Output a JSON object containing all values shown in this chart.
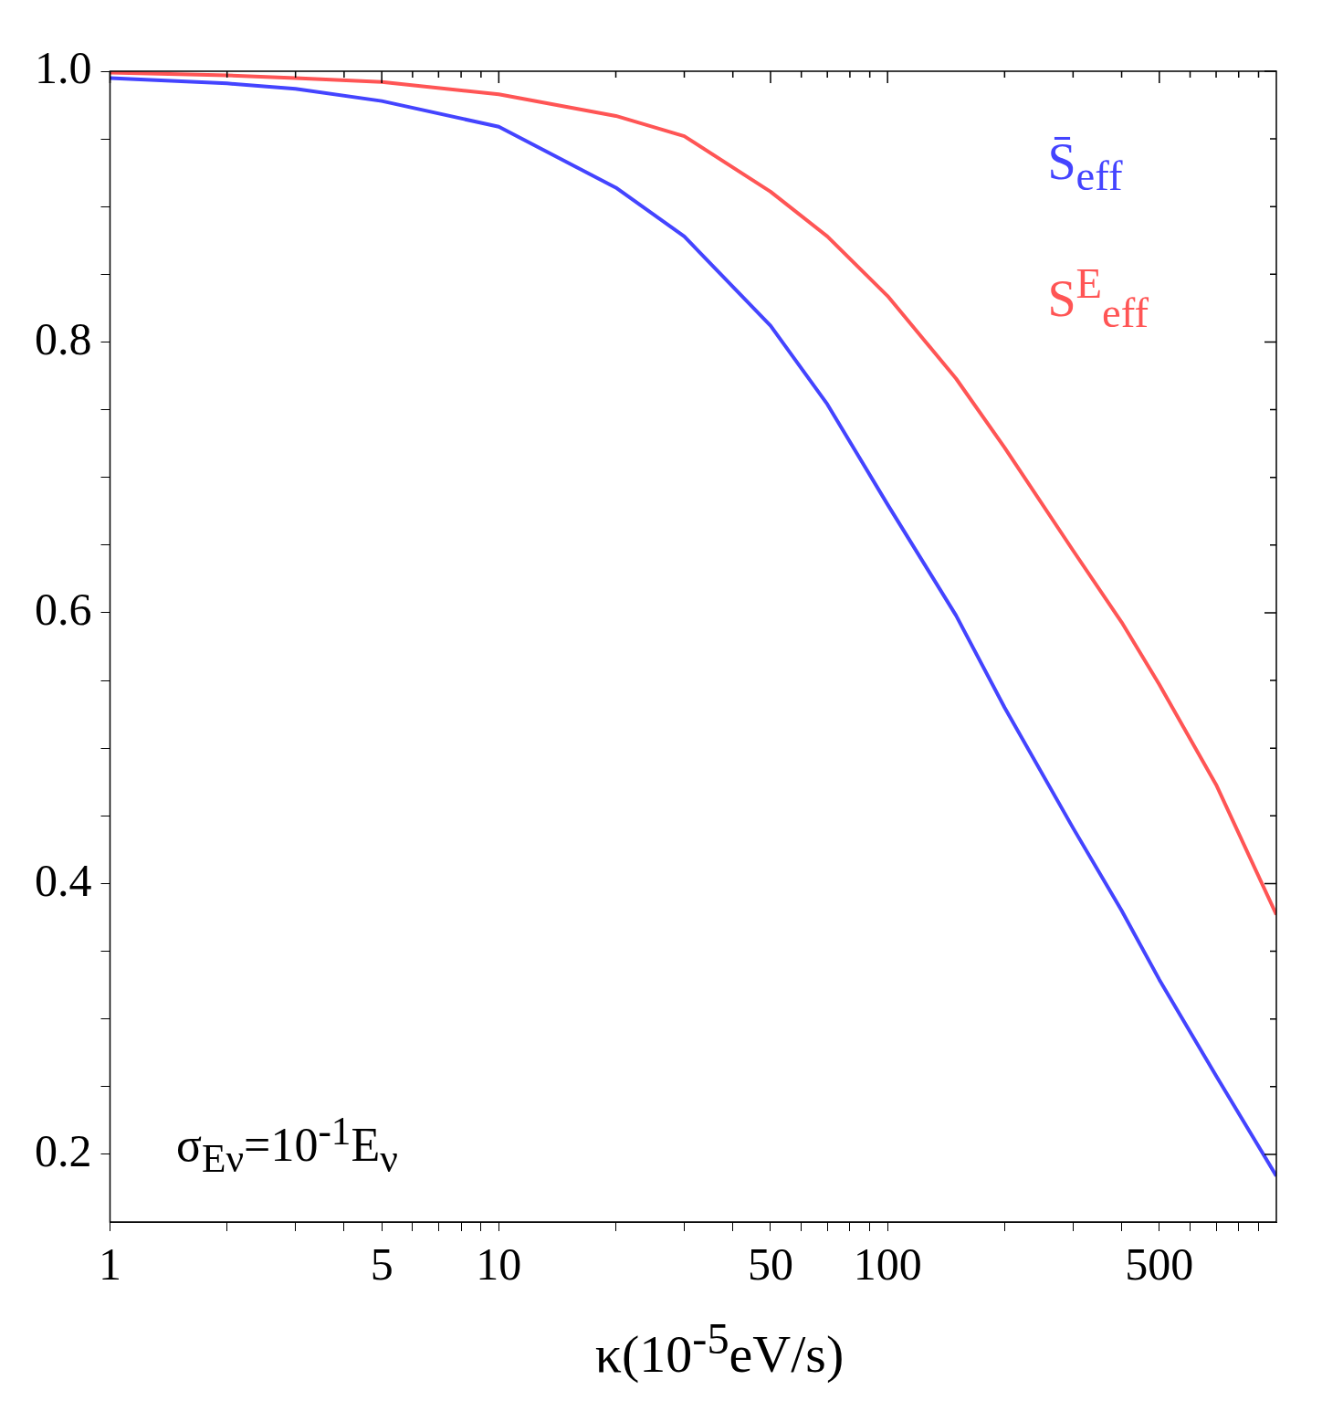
{
  "chart_data": {
    "type": "line",
    "xlabel": "κ(10$^{-5}$eV/s)",
    "log": "x",
    "grid": false,
    "legend": "top right",
    "marker": "none",
    "line_style": "solid",
    "xlim": [
      1,
      1000
    ],
    "ylim": [
      0.15,
      1.0
    ],
    "xticks": [
      1,
      {
        "value": 2,
        "label": null
      },
      {
        "value": 3,
        "label": null
      },
      {
        "value": 4,
        "label": null
      },
      5,
      {
        "value": 6,
        "label": null
      },
      {
        "value": 7,
        "label": null
      },
      {
        "value": 8,
        "label": null
      },
      {
        "value": 9,
        "label": null
      },
      10,
      {
        "value": 20,
        "label": null
      },
      {
        "value": 30,
        "label": null
      },
      {
        "value": 40,
        "label": null
      },
      50,
      {
        "value": 60,
        "label": null
      },
      {
        "value": 70,
        "label": null
      },
      {
        "value": 80,
        "label": null
      },
      {
        "value": 90,
        "label": null
      },
      100,
      {
        "value": 200,
        "label": null
      },
      {
        "value": 300,
        "label": null
      },
      {
        "value": 400,
        "label": null
      },
      500,
      {
        "value": 600,
        "label": null
      },
      {
        "value": 700,
        "label": null
      },
      {
        "value": 800,
        "label": null
      },
      {
        "value": 900,
        "label": null
      }
    ],
    "yticks": [
      {
        "value": 0.2,
        "label": "0.2"
      },
      {
        "value": 0.25,
        "label": null
      },
      {
        "value": 0.3,
        "label": null
      },
      {
        "value": 0.35,
        "label": null
      },
      {
        "value": 0.4,
        "label": "0.4"
      },
      {
        "value": 0.45,
        "label": null
      },
      {
        "value": 0.5,
        "label": null
      },
      {
        "value": 0.55,
        "label": null
      },
      {
        "value": 0.6,
        "label": "0.6"
      },
      {
        "value": 0.65,
        "label": null
      },
      {
        "value": 0.7,
        "label": null
      },
      {
        "value": 0.75,
        "label": null
      },
      {
        "value": 0.8,
        "label": "0.8"
      },
      {
        "value": 0.85,
        "label": null
      },
      {
        "value": 0.9,
        "label": null
      },
      {
        "value": 0.95,
        "label": null
      },
      {
        "value": 1.0,
        "label": "1.0"
      }
    ],
    "x": [
      1,
      2,
      3,
      5,
      10,
      20,
      30,
      50,
      70,
      100,
      150,
      200,
      300,
      400,
      500,
      700,
      1000
    ],
    "series": [
      {
        "name": "S̄$_{eff}$",
        "color": "#4444ff",
        "values": [
          0.995,
          0.991,
          0.987,
          0.978,
          0.959,
          0.914,
          0.878,
          0.812,
          0.754,
          0.68,
          0.598,
          0.53,
          0.441,
          0.38,
          0.329,
          0.258,
          0.184
        ]
      },
      {
        "name": "S$^{E}$$_{eff}$",
        "color": "#ff5555",
        "values": [
          0.999,
          0.997,
          0.995,
          0.992,
          0.983,
          0.967,
          0.952,
          0.911,
          0.878,
          0.834,
          0.773,
          0.722,
          0.646,
          0.593,
          0.547,
          0.473,
          0.377
        ]
      }
    ],
    "annotations": [
      "σ$_{Eν}$=10$^{-1}$E$_{ν}$"
    ]
  }
}
